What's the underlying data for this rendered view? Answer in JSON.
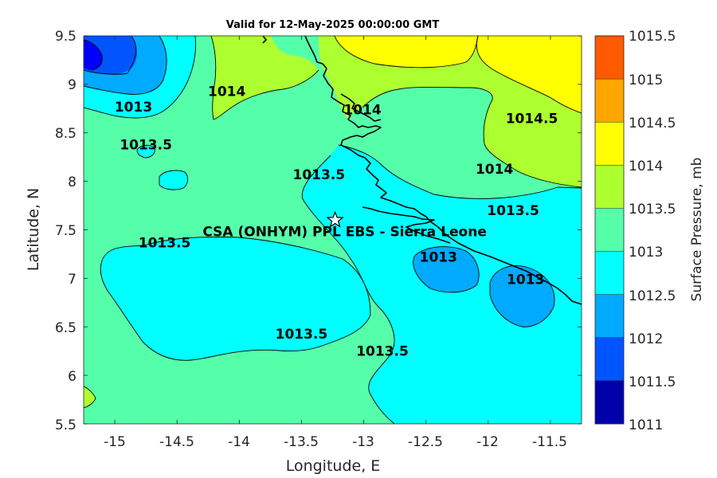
{
  "title": "Valid for 12-May-2025 00:00:00 GMT",
  "map": {
    "x_label": "Longitude, E",
    "y_label": "Latitude, N",
    "x_ticks": [
      "-15",
      "-14.5",
      "-14",
      "-13.5",
      "-13",
      "-12.5",
      "-12",
      "-11.5"
    ],
    "y_ticks": [
      "9.5",
      "9",
      "8.5",
      "8",
      "7.5",
      "7",
      "6.5",
      "6",
      "5.5"
    ],
    "xlim": [
      -15.25,
      -11.25
    ],
    "ylim": [
      5.5,
      9.5
    ],
    "station": {
      "label": "CSA (ONHYM) PPL EBS  - Sierra Leone",
      "lon": -13.23,
      "lat": 7.6,
      "marker": "star-icon"
    },
    "contour_labels": [
      {
        "text": "1013",
        "lon": -14.85,
        "lat": 8.77
      },
      {
        "text": "1013.5",
        "lon": -14.75,
        "lat": 8.38
      },
      {
        "text": "1014",
        "lon": -14.1,
        "lat": 8.93
      },
      {
        "text": "1014",
        "lon": -13.01,
        "lat": 8.74
      },
      {
        "text": "1013.5",
        "lon": -13.36,
        "lat": 8.07
      },
      {
        "text": "1014.5",
        "lon": -11.65,
        "lat": 8.65
      },
      {
        "text": "1014",
        "lon": -11.95,
        "lat": 8.13
      },
      {
        "text": "1013.5",
        "lon": -11.8,
        "lat": 7.7
      },
      {
        "text": "1013.5",
        "lon": -14.6,
        "lat": 7.37
      },
      {
        "text": "1013",
        "lon": -12.4,
        "lat": 7.22
      },
      {
        "text": "1013",
        "lon": -11.7,
        "lat": 6.99
      },
      {
        "text": "1013.5",
        "lon": -13.5,
        "lat": 6.43
      },
      {
        "text": "1013.5",
        "lon": -12.85,
        "lat": 6.25
      }
    ]
  },
  "colorbar": {
    "label": "Surface Pressure, mb",
    "levels": [
      "1015.5",
      "1015",
      "1014.5",
      "1014",
      "1013.5",
      "1013",
      "1012.5",
      "1012",
      "1011.5",
      "1011"
    ],
    "colors": [
      "#ff5a00",
      "#ffa500",
      "#ffff00",
      "#adff2f",
      "#55ffaa",
      "#00ffff",
      "#00aaff",
      "#0055ff",
      "#0000ff",
      "#0000aa"
    ]
  },
  "fill_colors": {
    "p1011": "#0000aa",
    "p1011_5": "#0000ff",
    "p1012": "#0055ff",
    "p1012_5": "#00aaff",
    "p1013": "#00ffff",
    "p1013_5": "#55ffaa",
    "p1014": "#adff2f",
    "p1014_5": "#ffff00"
  }
}
